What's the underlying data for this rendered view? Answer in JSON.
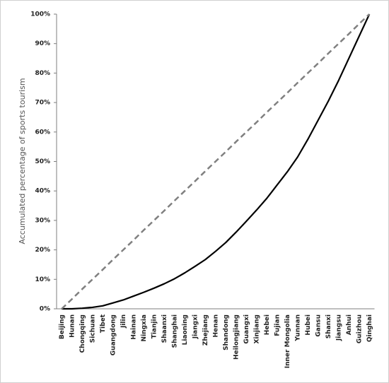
{
  "chart_data": {
    "type": "line",
    "y_label": "Accumulated percentage of sports tourism",
    "categories": [
      "Beijing",
      "Hunan",
      "Chongqing",
      "Sichuan",
      "Tibet",
      "Guangdong",
      "Jilin",
      "Hainan",
      "Ningxia",
      "Tianjin",
      "Shaanxi",
      "Shanghai",
      "Liaoning",
      "Jiangxi",
      "Zhejiang",
      "Henan",
      "Shandong",
      "Heilongjiang",
      "Guangxi",
      "Xinjiang",
      "Hebei",
      "Fujian",
      "Inner Mongolia",
      "Yunnan",
      "Hubei",
      "Gansu",
      "Shanxi",
      "Jiangsu",
      "Anhui",
      "Guizhou",
      "Qinghai"
    ],
    "series": [
      {
        "color": "#000000",
        "dashed": false,
        "values": [
          0,
          0,
          0.2,
          0.5,
          1,
          2,
          3,
          4.3,
          5.6,
          7,
          8.5,
          10.2,
          12.2,
          14.4,
          16.7,
          19.5,
          22.5,
          26,
          29.7,
          33.5,
          37.5,
          42,
          46.5,
          51.5,
          57.5,
          64,
          70.5,
          77.5,
          85,
          92.5,
          100
        ]
      },
      {
        "color": "#808080",
        "dashed": true,
        "values": [
          0,
          3.3,
          6.7,
          10,
          13.3,
          16.7,
          20,
          23.3,
          26.7,
          30,
          33.3,
          36.7,
          40,
          43.3,
          46.7,
          50,
          53.3,
          56.7,
          60,
          63.3,
          66.7,
          70,
          73.3,
          76.7,
          80,
          83.3,
          86.7,
          90,
          93.3,
          96.7,
          100
        ]
      }
    ],
    "ylim": [
      0,
      100
    ],
    "yticks": [
      {
        "value": 0,
        "label": "0%"
      },
      {
        "value": 10,
        "label": "10%"
      },
      {
        "value": 20,
        "label": "20%"
      },
      {
        "value": 30,
        "label": "30%"
      },
      {
        "value": 40,
        "label": "40%"
      },
      {
        "value": 50,
        "label": "50%"
      },
      {
        "value": 60,
        "label": "60%"
      },
      {
        "value": 70,
        "label": "70%"
      },
      {
        "value": 80,
        "label": "80%"
      },
      {
        "value": 90,
        "label": "90%"
      },
      {
        "value": 100,
        "label": "100%"
      }
    ],
    "grid": false
  }
}
